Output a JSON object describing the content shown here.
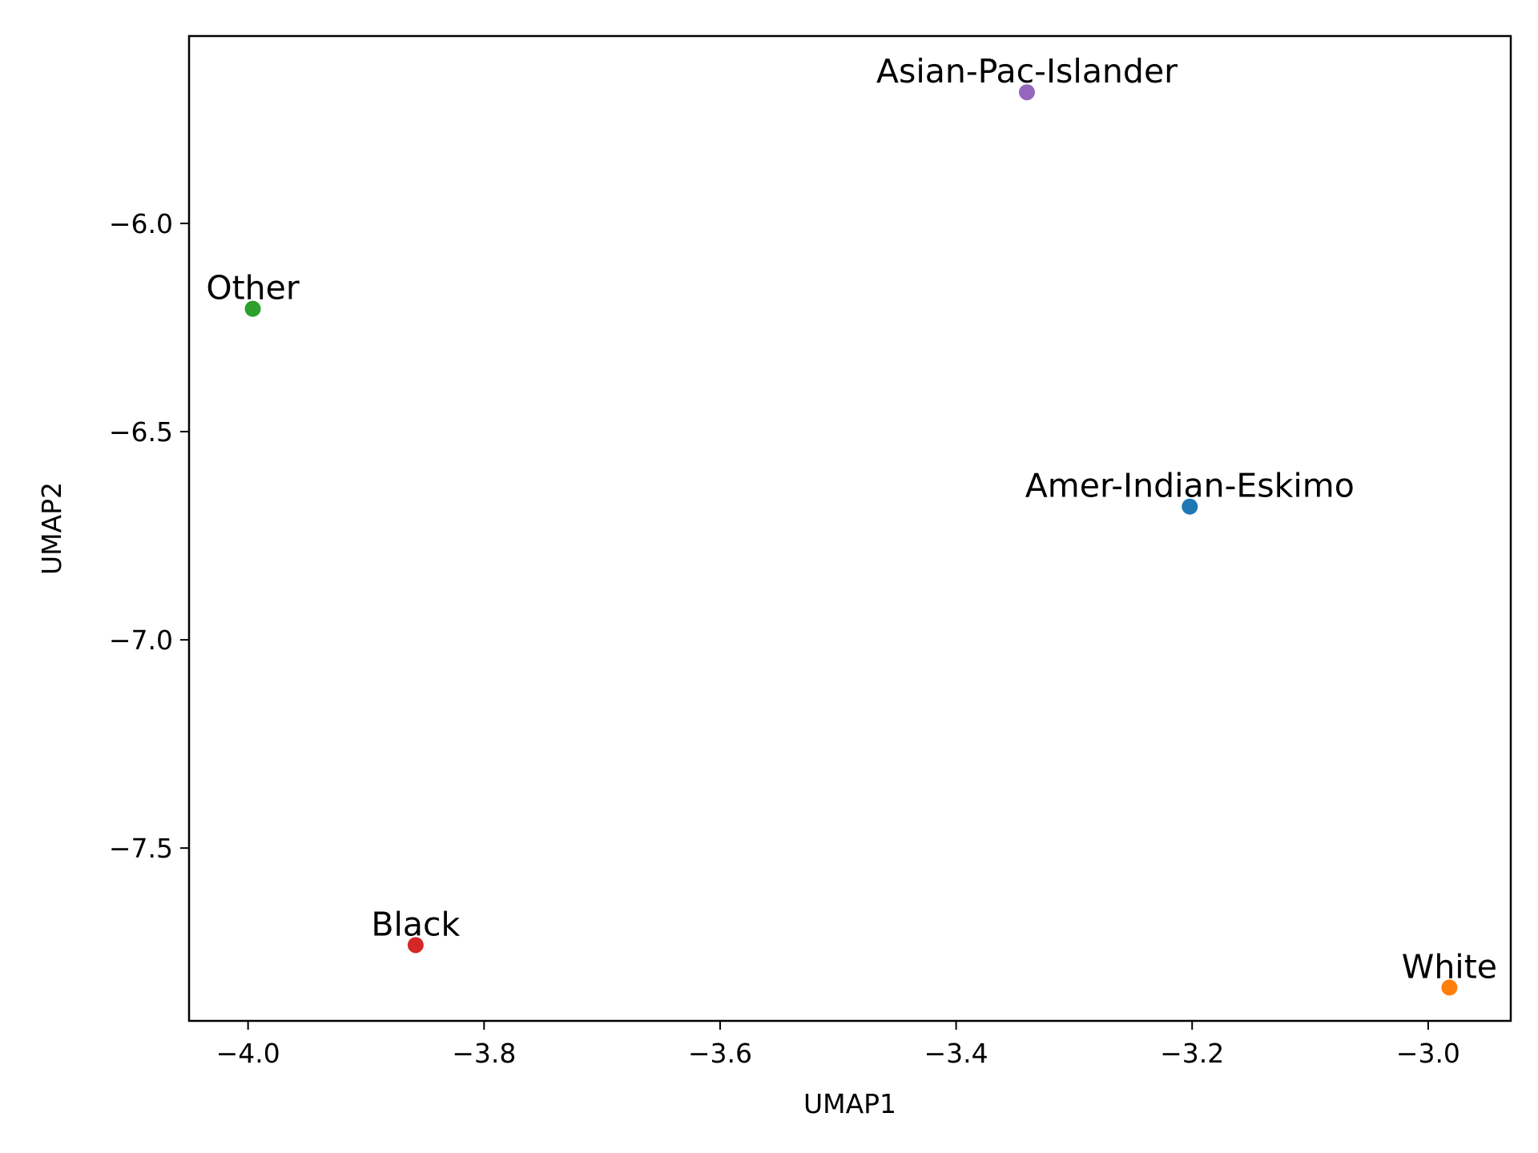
{
  "chart_data": {
    "type": "scatter",
    "title": "",
    "xlabel": "UMAP1",
    "ylabel": "UMAP2",
    "xlim": [
      -4.05,
      -2.93
    ],
    "ylim": [
      -7.915,
      -5.55
    ],
    "xticks": [
      -4.0,
      -3.8,
      -3.6,
      -3.4,
      -3.2,
      -3.0
    ],
    "xtick_labels": [
      "−4.0",
      "−3.8",
      "−3.6",
      "−3.4",
      "−3.2",
      "−3.0"
    ],
    "yticks": [
      -6.0,
      -6.5,
      -7.0,
      -7.5
    ],
    "ytick_labels": [
      "−6.0",
      "−6.5",
      "−7.0",
      "−7.5"
    ],
    "grid": false,
    "points": [
      {
        "label": "Amer-Indian-Eskimo",
        "x": -3.202,
        "y": -6.68,
        "color": "#1f77b4"
      },
      {
        "label": "White",
        "x": -2.982,
        "y": -7.835,
        "color": "#ff7f0e"
      },
      {
        "label": "Other",
        "x": -3.996,
        "y": -6.205,
        "color": "#2ca02c"
      },
      {
        "label": "Black",
        "x": -3.858,
        "y": -7.733,
        "color": "#d62728"
      },
      {
        "label": "Asian-Pac-Islander",
        "x": -3.34,
        "y": -5.685,
        "color": "#9467bd"
      }
    ]
  }
}
